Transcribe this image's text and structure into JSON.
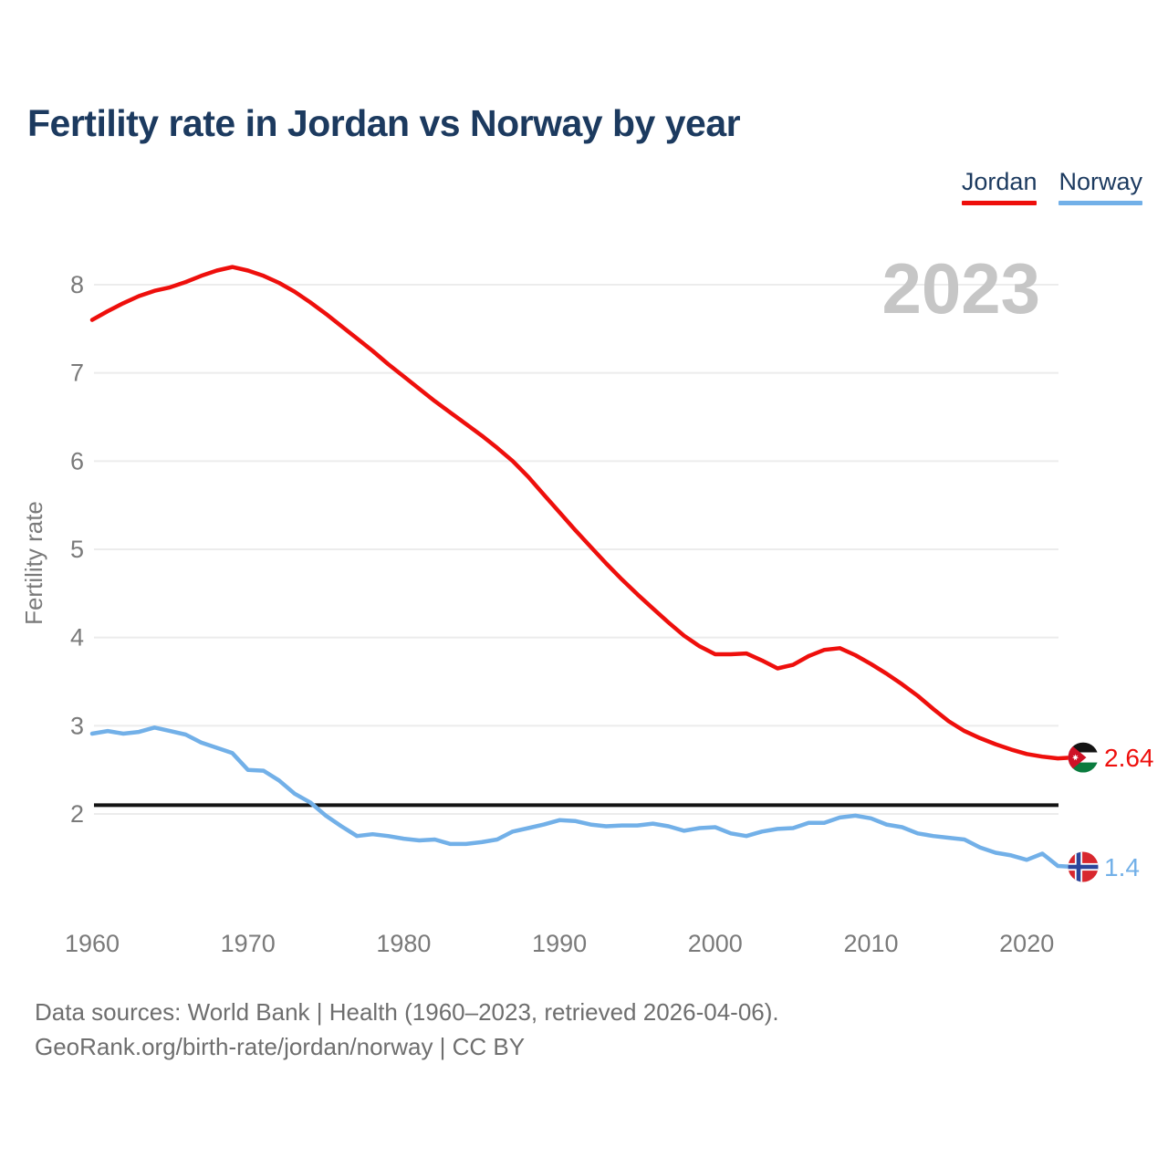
{
  "title": "Fertility rate in Jordan vs Norway by year",
  "watermark": "2023",
  "legend": {
    "items": [
      {
        "label": "Jordan",
        "color": "#ee0f0c"
      },
      {
        "label": "Norway",
        "color": "#72b0e8"
      }
    ]
  },
  "y_axis": {
    "title": "Fertility rate"
  },
  "series_end_labels": [
    {
      "name": "Jordan",
      "value": "2.64",
      "color": "#ee0f0c",
      "flag": "jordan-flag"
    },
    {
      "name": "Norway",
      "value": "1.4",
      "color": "#72b0e8",
      "flag": "norway-flag"
    }
  ],
  "footer": {
    "line1": "Data sources: World Bank | Health (1960–2023, retrieved 2026-04-06).",
    "line2": "GeoRank.org/birth-rate/jordan/norway | CC BY"
  },
  "chart_data": {
    "type": "line",
    "title": "Fertility rate in Jordan vs Norway by year",
    "xlabel": "",
    "ylabel": "Fertility rate",
    "x_start": 1960,
    "x_end": 2023,
    "xticks": [
      1960,
      1970,
      1980,
      1990,
      2000,
      2010,
      2020
    ],
    "yticks": [
      2,
      3,
      4,
      5,
      6,
      7,
      8
    ],
    "ylim": [
      1.1,
      8.35
    ],
    "grid": "horizontal",
    "legend_position": "top-right",
    "replacement_line": 2.1,
    "series": [
      {
        "name": "Jordan",
        "color": "#ee0f0c",
        "end_value": 2.64,
        "values": [
          7.6,
          7.7,
          7.79,
          7.87,
          7.93,
          7.97,
          8.03,
          8.1,
          8.16,
          8.2,
          8.16,
          8.1,
          8.02,
          7.92,
          7.8,
          7.67,
          7.53,
          7.39,
          7.25,
          7.1,
          6.96,
          6.82,
          6.68,
          6.55,
          6.42,
          6.29,
          6.15,
          6.0,
          5.82,
          5.62,
          5.42,
          5.22,
          5.03,
          4.84,
          4.66,
          4.49,
          4.33,
          4.17,
          4.02,
          3.9,
          3.81,
          3.81,
          3.82,
          3.74,
          3.65,
          3.69,
          3.79,
          3.86,
          3.88,
          3.8,
          3.7,
          3.59,
          3.47,
          3.34,
          3.19,
          3.05,
          2.94,
          2.86,
          2.79,
          2.73,
          2.68,
          2.65,
          2.63,
          2.64
        ]
      },
      {
        "name": "Norway",
        "color": "#72b0e8",
        "end_value": 1.4,
        "values": [
          2.91,
          2.94,
          2.91,
          2.93,
          2.98,
          2.94,
          2.9,
          2.81,
          2.75,
          2.69,
          2.5,
          2.49,
          2.38,
          2.23,
          2.13,
          1.98,
          1.86,
          1.75,
          1.77,
          1.75,
          1.72,
          1.7,
          1.71,
          1.66,
          1.66,
          1.68,
          1.71,
          1.8,
          1.84,
          1.88,
          1.93,
          1.92,
          1.88,
          1.86,
          1.87,
          1.87,
          1.89,
          1.86,
          1.81,
          1.84,
          1.85,
          1.78,
          1.75,
          1.8,
          1.83,
          1.84,
          1.9,
          1.9,
          1.96,
          1.98,
          1.95,
          1.88,
          1.85,
          1.78,
          1.75,
          1.73,
          1.71,
          1.62,
          1.56,
          1.53,
          1.48,
          1.55,
          1.41,
          1.4
        ]
      }
    ]
  }
}
